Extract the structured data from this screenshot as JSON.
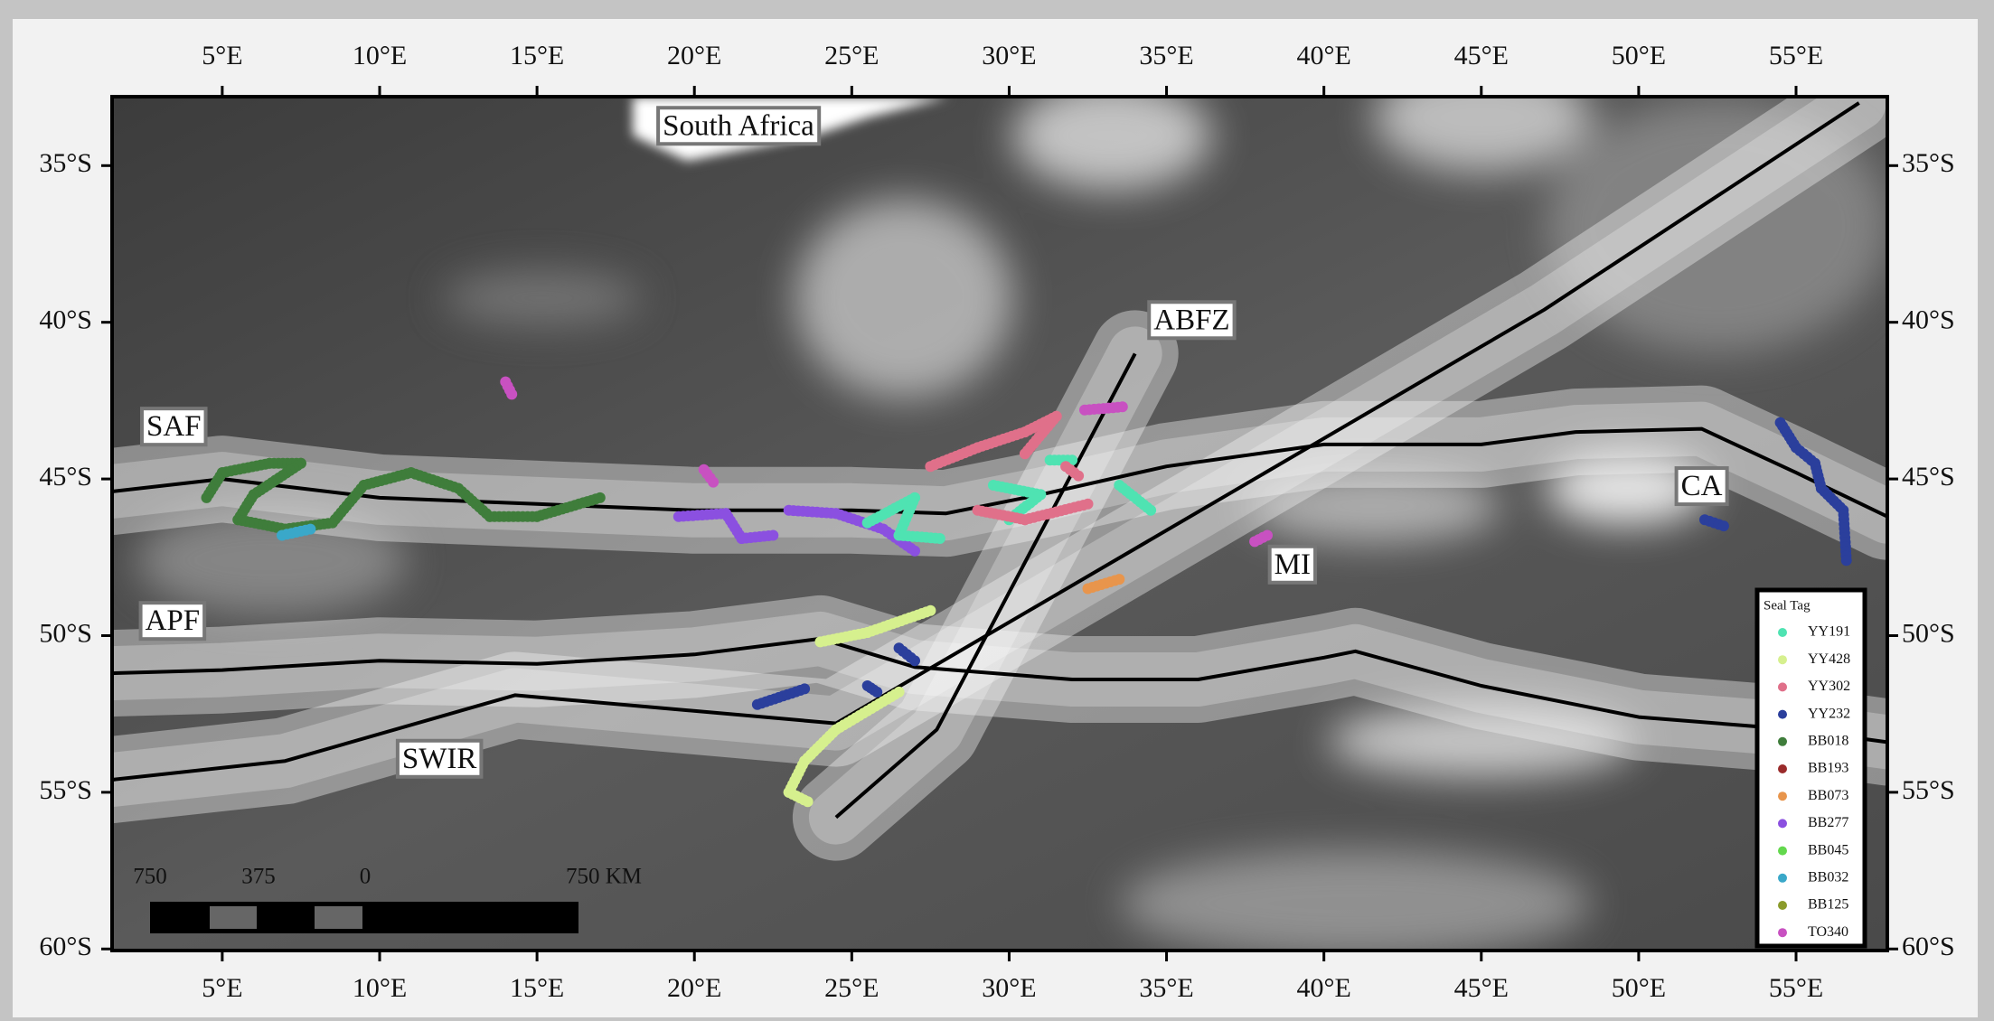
{
  "map": {
    "lon_ticks": [
      {
        "value": 5,
        "label": "5°E"
      },
      {
        "value": 10,
        "label": "10°E"
      },
      {
        "value": 15,
        "label": "15°E"
      },
      {
        "value": 20,
        "label": "20°E"
      },
      {
        "value": 25,
        "label": "25°E"
      },
      {
        "value": 30,
        "label": "30°E"
      },
      {
        "value": 35,
        "label": "35°E"
      },
      {
        "value": 40,
        "label": "40°E"
      },
      {
        "value": 45,
        "label": "45°E"
      },
      {
        "value": 50,
        "label": "50°E"
      },
      {
        "value": 55,
        "label": "55°E"
      }
    ],
    "lat_ticks": [
      {
        "value": -35,
        "label": "35°S"
      },
      {
        "value": -40,
        "label": "40°S"
      },
      {
        "value": -45,
        "label": "45°S"
      },
      {
        "value": -50,
        "label": "50°S"
      },
      {
        "value": -55,
        "label": "55°S"
      },
      {
        "value": -60,
        "label": "60°S"
      }
    ],
    "xlim": [
      1.5,
      57.9
    ],
    "ylim": [
      -60.05,
      -32.8
    ],
    "labels": [
      "South Africa",
      "ABFZ",
      "SAF",
      "APF",
      "SWIR",
      "CA",
      "MI"
    ],
    "scale_bar": [
      "750",
      "375",
      "0",
      "750 KM"
    ],
    "legend": {
      "title": "Seal Tag",
      "entries": [
        {
          "name": "YY191",
          "color": "#4fe3b2"
        },
        {
          "name": "YY428",
          "color": "#d6f08e"
        },
        {
          "name": "YY302",
          "color": "#e0708a"
        },
        {
          "name": "YY232",
          "color": "#2b3f9c"
        },
        {
          "name": "BB018",
          "color": "#3f7d3b"
        },
        {
          "name": "BB193",
          "color": "#9a2b2b"
        },
        {
          "name": "BB073",
          "color": "#e8954c"
        },
        {
          "name": "BB277",
          "color": "#8b50e0"
        },
        {
          "name": "BB045",
          "color": "#63d84d"
        },
        {
          "name": "BB032",
          "color": "#3aa8c9"
        },
        {
          "name": "BB125",
          "color": "#8b9b2b"
        },
        {
          "name": "TO340",
          "color": "#c851c1"
        }
      ]
    }
  }
}
